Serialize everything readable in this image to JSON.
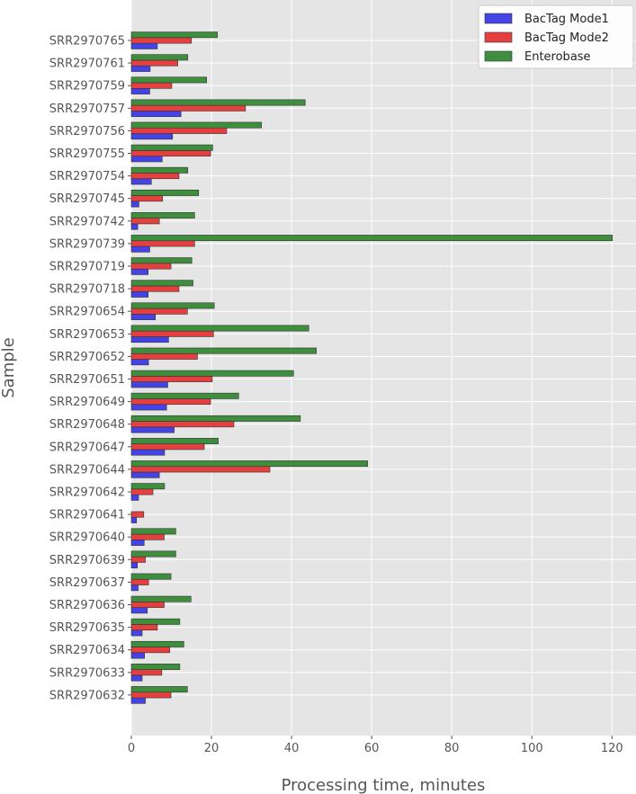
{
  "chart_data": {
    "type": "bar",
    "orientation": "horizontal",
    "xlabel": "Processing time, minutes",
    "ylabel": "Sample",
    "xlim": [
      0,
      126
    ],
    "xticks": [
      0,
      20,
      40,
      60,
      80,
      100,
      120
    ],
    "grid": true,
    "legend_position": "top-right",
    "categories": [
      "SRR2970765",
      "SRR2970761",
      "SRR2970759",
      "SRR2970757",
      "SRR2970756",
      "SRR2970755",
      "SRR2970754",
      "SRR2970745",
      "SRR2970742",
      "SRR2970739",
      "SRR2970719",
      "SRR2970718",
      "SRR2970654",
      "SRR2970653",
      "SRR2970652",
      "SRR2970651",
      "SRR2970649",
      "SRR2970648",
      "SRR2970647",
      "SRR2970644",
      "SRR2970642",
      "SRR2970641",
      "SRR2970640",
      "SRR2970639",
      "SRR2970637",
      "SRR2970636",
      "SRR2970635",
      "SRR2970634",
      "SRR2970633",
      "SRR2970632"
    ],
    "series": [
      {
        "name": "BacTag Mode1",
        "color": "#4343e6",
        "values": [
          6.5,
          4.7,
          4.6,
          12.4,
          10.3,
          7.7,
          5.0,
          1.9,
          1.6,
          4.6,
          4.2,
          4.2,
          6.0,
          9.3,
          4.3,
          9.1,
          8.8,
          10.7,
          8.3,
          7.0,
          1.8,
          1.3,
          3.2,
          1.5,
          1.7,
          4.0,
          2.7,
          3.3,
          2.7,
          3.5
        ]
      },
      {
        "name": "BacTag Mode2",
        "color": "#e53f3f",
        "values": [
          15.0,
          11.6,
          10.1,
          28.5,
          23.8,
          19.8,
          11.9,
          7.8,
          7.0,
          15.8,
          9.9,
          11.9,
          14.0,
          20.5,
          16.5,
          20.2,
          19.8,
          25.6,
          18.2,
          34.6,
          5.4,
          3.1,
          8.2,
          3.5,
          4.3,
          8.2,
          6.5,
          9.6,
          7.6,
          9.9
        ]
      },
      {
        "name": "Enterobase",
        "color": "#3e8e3e",
        "values": [
          21.5,
          14.1,
          18.8,
          43.4,
          32.5,
          20.3,
          14.1,
          16.8,
          15.8,
          120.1,
          15.1,
          15.4,
          20.7,
          44.3,
          46.2,
          40.5,
          26.8,
          42.2,
          21.7,
          59.0,
          8.3,
          null,
          11.1,
          11.1,
          9.9,
          14.9,
          12.1,
          13.1,
          12.1,
          14.0
        ]
      }
    ]
  }
}
